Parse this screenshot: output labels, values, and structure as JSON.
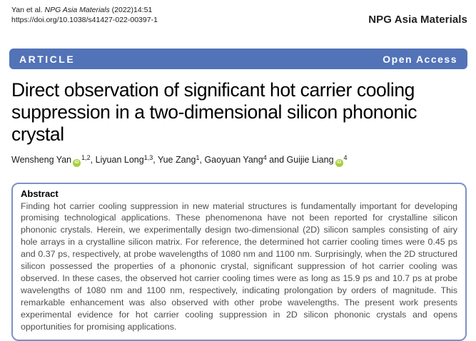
{
  "header": {
    "citation": {
      "prefix": "Yan et al. ",
      "journal": "NPG Asia Materials",
      "suffix": " (2022)14:51"
    },
    "doi": "https://doi.org/10.1038/s41427-022-00397-1",
    "journal_name": "NPG Asia Materials"
  },
  "banner": {
    "article_label": "ARTICLE",
    "open_access_label": "Open Access"
  },
  "title": {
    "full": "Direct observation of significant hot carrier cooling suppression in a two-dimensional silicon phononic crystal",
    "lines": [
      "Direct observation of significant hot carrier cooling",
      "suppression in a two-dimensional silicon phononic",
      "crystal"
    ]
  },
  "authors": {
    "orcid_label": "iD",
    "items": [
      {
        "name": "Wensheng Yan",
        "orcid": true,
        "sup": "1,2",
        "sep_after": ", "
      },
      {
        "name": "Liyuan Long",
        "orcid": false,
        "sup": "1,3",
        "sep_after": ", "
      },
      {
        "name": "Yue Zang",
        "orcid": false,
        "sup": "1",
        "sep_after": ", "
      },
      {
        "name": "Gaoyuan Yang",
        "orcid": false,
        "sup": "4",
        "sep_after": " and "
      },
      {
        "name": "Guijie Liang",
        "orcid": true,
        "sup": "4",
        "sep_after": ""
      }
    ]
  },
  "abstract": {
    "heading": "Abstract",
    "body": "Finding hot carrier cooling suppression in new material structures is fundamentally important for developing promising technological applications. These phenomenona have not been reported for crystalline silicon phononic crystals. Herein, we experimentally design two-dimensional (2D) silicon samples consisting of airy hole arrays in a crystalline silicon matrix. For reference, the determined hot carrier cooling times were 0.45 ps and 0.37 ps, respectively, at probe wavelengths of 1080 nm and 1100 nm. Surprisingly, when the 2D structured silicon possessed the properties of a phononic crystal, significant suppression of hot carrier cooling was observed. In these cases, the observed hot carrier cooling times were as long as 15.9 ps and 10.7 ps at probe wavelengths of 1080 nm and 1100 nm, respectively, indicating prolongation by orders of magnitude. This remarkable enhancement was also observed with other probe wavelengths. The present work presents experimental evidence for hot carrier cooling suppression in 2D silicon phononic crystals and opens opportunities for promising applications."
  },
  "colors": {
    "banner_background": "#5373b8",
    "abstract_border": "#7e91c1",
    "orcid_green": "#a6ce39"
  }
}
